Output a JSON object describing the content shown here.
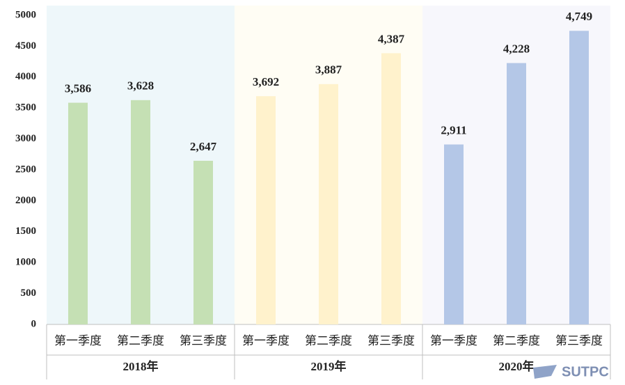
{
  "chart_data": {
    "type": "bar",
    "categories": [
      "第一季度",
      "第二季度",
      "第三季度"
    ],
    "series": [
      {
        "name": "2018年",
        "color": "#c5e0b4",
        "background": "#eef7fa",
        "values": [
          3586,
          3628,
          2647
        ],
        "value_labels": [
          "3,586",
          "3,628",
          "2,647"
        ]
      },
      {
        "name": "2019年",
        "color": "#fff2cc",
        "background": "#fffdf4",
        "values": [
          3692,
          3887,
          4387
        ],
        "value_labels": [
          "3,692",
          "3,887",
          "4,387"
        ]
      },
      {
        "name": "2020年",
        "color": "#b4c7e7",
        "background": "#f7f7fc",
        "values": [
          2911,
          4228,
          4749
        ],
        "value_labels": [
          "2,911",
          "4,228",
          "4,749"
        ]
      }
    ],
    "ylim": [
      0,
      5000
    ],
    "yticks": [
      0,
      500,
      1000,
      1500,
      2000,
      2500,
      3000,
      3500,
      4000,
      4500,
      5000
    ],
    "watermark": "SUTPC"
  }
}
